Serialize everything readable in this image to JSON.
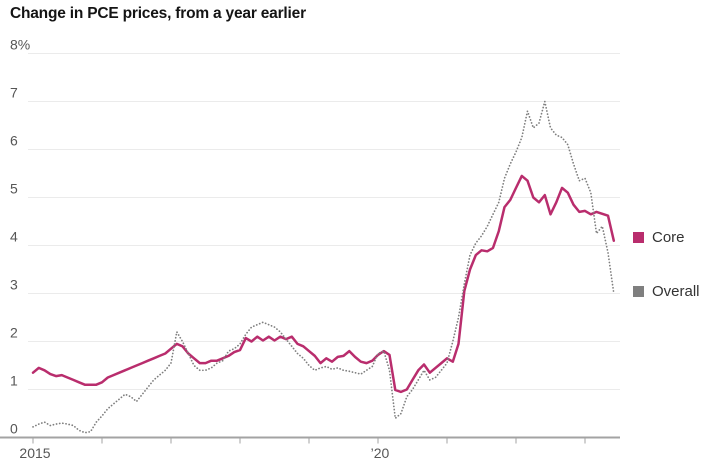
{
  "chart_data": {
    "type": "line",
    "title": "Change in PCE prices, from a year earlier",
    "x_start": "2015-01",
    "x_end": "2023-06",
    "frequency": "monthly",
    "grid": "horizontal",
    "legend_position": "right",
    "y_axis": {
      "min": 0,
      "max": 8,
      "unit": "%",
      "ticks": [
        {
          "value": 8,
          "label": "8%"
        },
        {
          "value": 7,
          "label": "7"
        },
        {
          "value": 6,
          "label": "6"
        },
        {
          "value": 5,
          "label": "5"
        },
        {
          "value": 4,
          "label": "4"
        },
        {
          "value": 3,
          "label": "3"
        },
        {
          "value": 2,
          "label": "2"
        },
        {
          "value": 1,
          "label": "1"
        },
        {
          "value": 0,
          "label": "0"
        }
      ]
    },
    "x_axis": {
      "tick_years": [
        2015,
        2016,
        2017,
        2018,
        2019,
        2020,
        2021,
        2022,
        2023
      ],
      "labeled_ticks": [
        {
          "year": 2015,
          "label": "2015"
        },
        {
          "year": 2020,
          "label": "’20"
        }
      ]
    },
    "series": [
      {
        "name": "Core",
        "line_style": "solid",
        "color": "#b92d6d",
        "values": [
          1.35,
          1.45,
          1.4,
          1.32,
          1.28,
          1.3,
          1.25,
          1.2,
          1.15,
          1.1,
          1.1,
          1.1,
          1.15,
          1.25,
          1.3,
          1.35,
          1.4,
          1.45,
          1.5,
          1.55,
          1.6,
          1.65,
          1.7,
          1.75,
          1.85,
          1.95,
          1.9,
          1.75,
          1.65,
          1.55,
          1.55,
          1.6,
          1.6,
          1.65,
          1.7,
          1.78,
          1.82,
          2.07,
          2.0,
          2.1,
          2.02,
          2.1,
          2.02,
          2.1,
          2.05,
          2.1,
          1.95,
          1.9,
          1.8,
          1.7,
          1.55,
          1.65,
          1.58,
          1.68,
          1.7,
          1.8,
          1.68,
          1.58,
          1.55,
          1.6,
          1.72,
          1.8,
          1.72,
          0.99,
          0.95,
          1.0,
          1.2,
          1.4,
          1.52,
          1.35,
          1.45,
          1.55,
          1.65,
          1.58,
          1.95,
          3.05,
          3.5,
          3.8,
          3.9,
          3.88,
          3.95,
          4.3,
          4.8,
          4.95,
          5.2,
          5.45,
          5.35,
          5.0,
          4.9,
          5.05,
          4.65,
          4.9,
          5.2,
          5.1,
          4.85,
          4.7,
          4.72,
          4.65,
          4.7,
          4.66,
          4.62,
          4.1
        ]
      },
      {
        "name": "Overall",
        "line_style": "dotted",
        "color": "#7f7f7f",
        "values": [
          0.22,
          0.28,
          0.32,
          0.25,
          0.28,
          0.3,
          0.28,
          0.25,
          0.15,
          0.1,
          0.12,
          0.32,
          0.45,
          0.6,
          0.7,
          0.8,
          0.9,
          0.85,
          0.75,
          0.9,
          1.05,
          1.2,
          1.3,
          1.4,
          1.55,
          2.2,
          2.0,
          1.75,
          1.5,
          1.4,
          1.4,
          1.45,
          1.55,
          1.6,
          1.8,
          1.85,
          1.95,
          2.15,
          2.3,
          2.35,
          2.4,
          2.35,
          2.3,
          2.2,
          2.05,
          1.9,
          1.75,
          1.65,
          1.5,
          1.4,
          1.45,
          1.48,
          1.42,
          1.45,
          1.4,
          1.38,
          1.35,
          1.32,
          1.4,
          1.48,
          1.75,
          1.8,
          1.4,
          0.4,
          0.5,
          0.85,
          1.0,
          1.2,
          1.4,
          1.2,
          1.25,
          1.4,
          1.55,
          2.0,
          2.5,
          3.2,
          3.8,
          4.05,
          4.2,
          4.4,
          4.65,
          4.9,
          5.4,
          5.7,
          5.95,
          6.25,
          6.8,
          6.45,
          6.55,
          7.0,
          6.45,
          6.3,
          6.25,
          6.1,
          5.7,
          5.35,
          5.4,
          5.1,
          4.25,
          4.4,
          3.85,
          3.0
        ]
      }
    ]
  }
}
